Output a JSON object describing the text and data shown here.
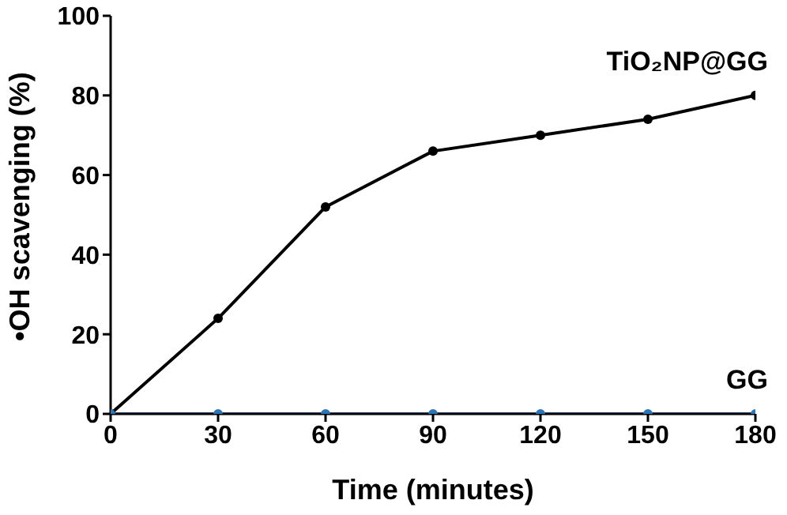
{
  "chart_data": {
    "type": "line",
    "xlabel": "Time (minutes)",
    "ylabel": "•OH scavenging (%)",
    "x": [
      0,
      30,
      60,
      90,
      120,
      150,
      180
    ],
    "series": [
      {
        "name": "TiO₂NP@GG",
        "color": "#000000",
        "values": [
          0,
          24,
          52,
          66,
          70,
          74,
          80
        ]
      },
      {
        "name": "GG",
        "color": "#2e75b6",
        "values": [
          0,
          0,
          0,
          0,
          0,
          0,
          0
        ]
      }
    ],
    "xlim": [
      0,
      180
    ],
    "xticks": [
      0,
      30,
      60,
      90,
      120,
      150,
      180
    ],
    "ylim": [
      0,
      100
    ],
    "yticks": [
      0,
      20,
      40,
      60,
      80,
      100
    ],
    "grid": false,
    "legend": false,
    "marker": "circle",
    "line_style": "solid"
  }
}
